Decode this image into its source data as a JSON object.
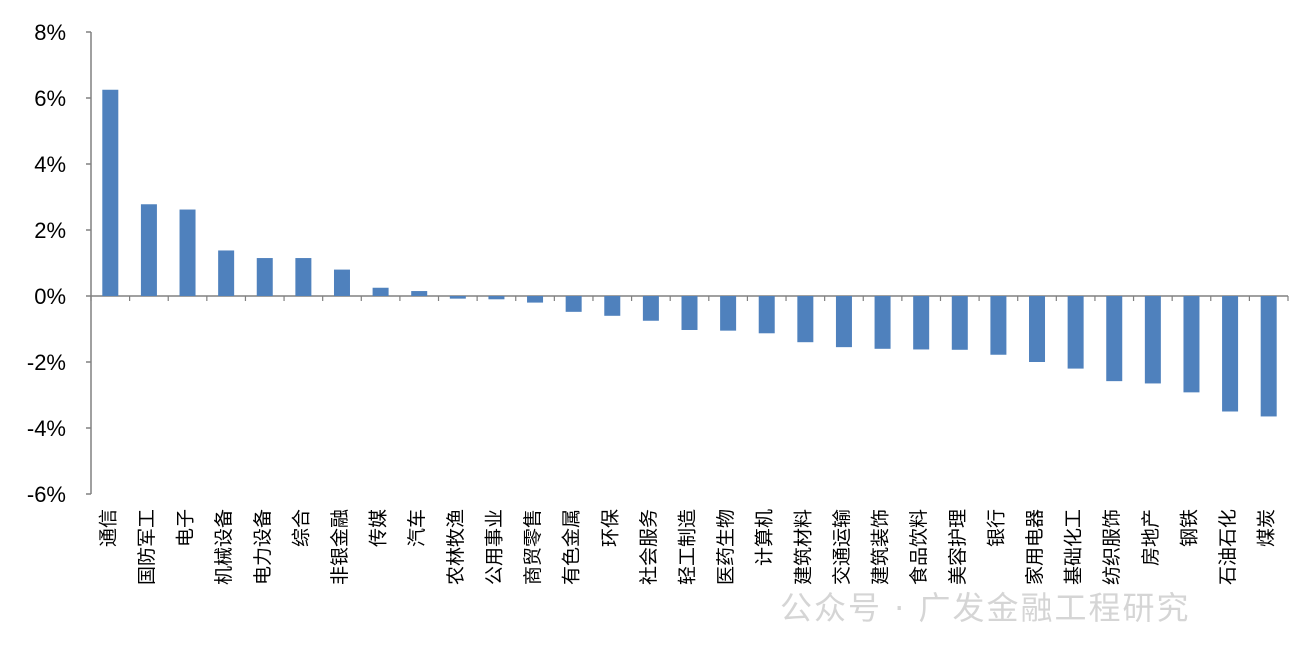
{
  "chart_data": {
    "type": "bar",
    "categories": [
      "通信",
      "国防军工",
      "电子",
      "机械设备",
      "电力设备",
      "综合",
      "非银金融",
      "传媒",
      "汽车",
      "农林牧渔",
      "公用事业",
      "商贸零售",
      "有色金属",
      "环保",
      "社会服务",
      "轻工制造",
      "医药生物",
      "计算机",
      "建筑材料",
      "交通运输",
      "建筑装饰",
      "食品饮料",
      "美容护理",
      "银行",
      "家用电器",
      "基础化工",
      "纺织服饰",
      "房地产",
      "钢铁",
      "石油石化",
      "煤炭"
    ],
    "values": [
      6.25,
      2.78,
      2.62,
      1.38,
      1.15,
      1.15,
      0.8,
      0.25,
      0.15,
      -0.08,
      -0.1,
      -0.2,
      -0.48,
      -0.6,
      -0.75,
      -1.03,
      -1.05,
      -1.13,
      -1.4,
      -1.55,
      -1.6,
      -1.62,
      -1.63,
      -1.78,
      -2.0,
      -2.2,
      -2.58,
      -2.65,
      -2.92,
      -3.5,
      -3.65
    ],
    "y_ticks": [
      "8%",
      "6%",
      "4%",
      "2%",
      "0%",
      "-2%",
      "-4%",
      "-6%"
    ],
    "ylim": [
      -6,
      8
    ],
    "ytick_step": 2,
    "title": "",
    "xlabel": "",
    "ylabel": "",
    "bar_color": "#4F81BD",
    "grid": false,
    "legend": "none"
  },
  "watermark": "公众号 · 广发金融工程研究"
}
